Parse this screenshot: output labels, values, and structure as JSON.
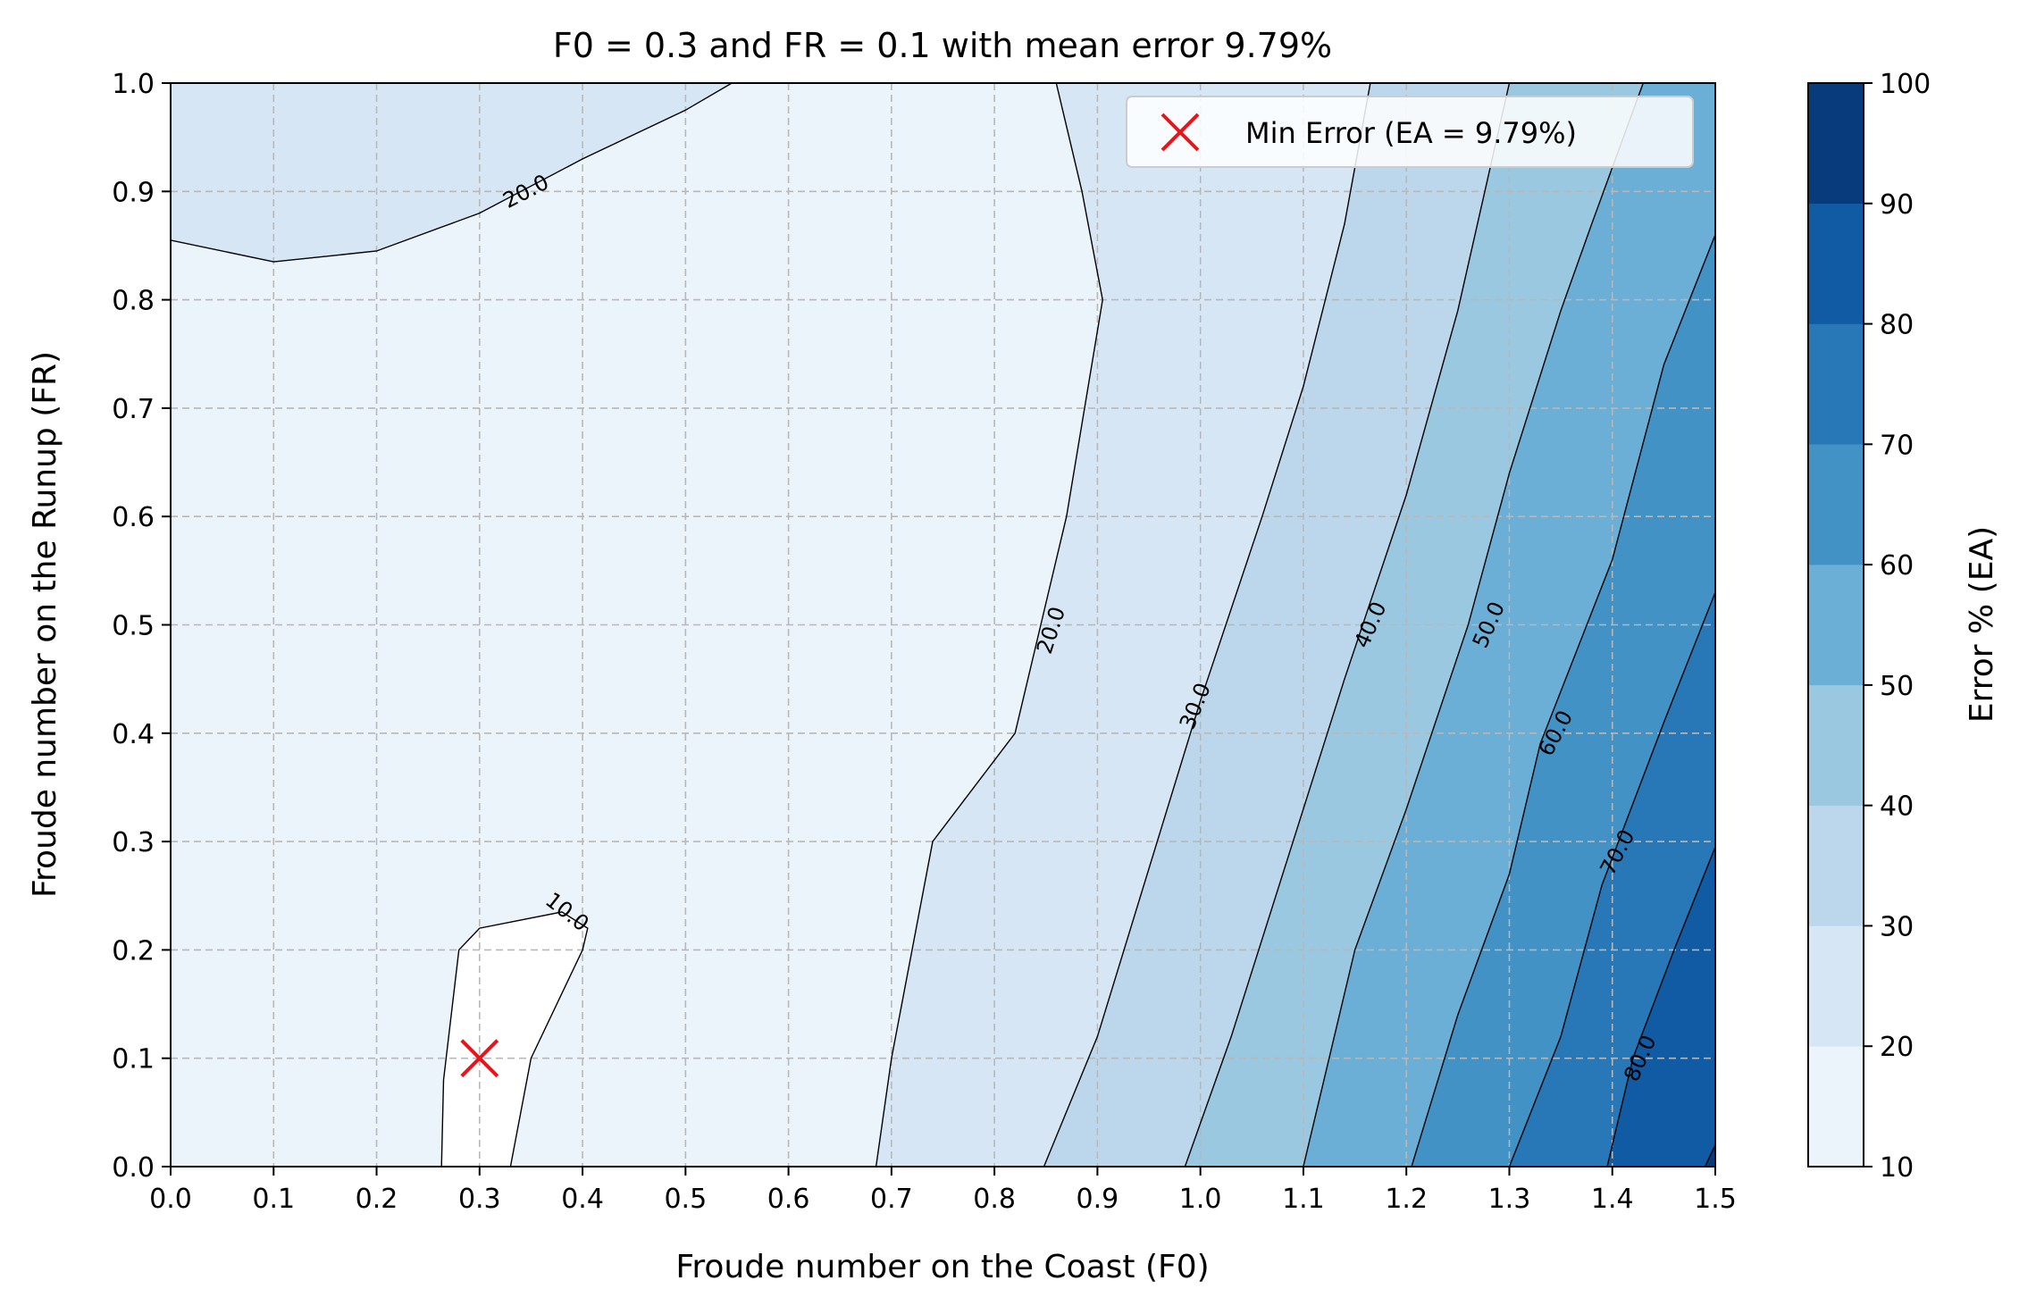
{
  "chart_data": {
    "type": "contour",
    "title": "F0 = 0.3 and FR = 0.1 with mean error 9.79%",
    "xlabel": "Froude number on the Coast (F0)",
    "ylabel": "Froude number on the Runup (FR)",
    "xlim": [
      0,
      1.5
    ],
    "ylim": [
      0,
      1.0
    ],
    "x_ticks": [
      "0.0",
      "0.1",
      "0.2",
      "0.3",
      "0.4",
      "0.5",
      "0.6",
      "0.7",
      "0.8",
      "0.9",
      "1.0",
      "1.1",
      "1.2",
      "1.3",
      "1.4",
      "1.5"
    ],
    "y_ticks": [
      "0.0",
      "0.1",
      "0.2",
      "0.3",
      "0.4",
      "0.5",
      "0.6",
      "0.7",
      "0.8",
      "0.9",
      "1.0"
    ],
    "grid": true,
    "colorbar": {
      "label": "Error % (EA)",
      "range": [
        10,
        100
      ],
      "levels": [
        10,
        20,
        30,
        40,
        50,
        60,
        70,
        80,
        90,
        100
      ],
      "tick_labels": [
        "10",
        "20",
        "30",
        "40",
        "50",
        "60",
        "70",
        "80",
        "90",
        "100"
      ],
      "colors": [
        "#ffffff",
        "#ebf3fb",
        "#d6e6f4",
        "#bcd7eb",
        "#9ac8e0",
        "#6baed6",
        "#4292c6",
        "#2878b8",
        "#105ba4",
        "#083b7c"
      ]
    },
    "contour_lines": [
      {
        "level": 10,
        "points": [
          [
            0.263,
            0
          ],
          [
            0.265,
            0.08
          ],
          [
            0.28,
            0.2
          ],
          [
            0.3,
            0.22
          ],
          [
            0.38,
            0.235
          ],
          [
            0.405,
            0.22
          ],
          [
            0.4,
            0.2
          ],
          [
            0.35,
            0.1
          ],
          [
            0.33,
            0
          ]
        ]
      },
      {
        "level": 20,
        "points": [
          [
            0.685,
            0
          ],
          [
            0.7,
            0.1
          ],
          [
            0.74,
            0.3
          ],
          [
            0.82,
            0.4
          ],
          [
            0.87,
            0.6
          ],
          [
            0.905,
            0.8
          ],
          [
            0.885,
            0.9
          ],
          [
            0.86,
            1.0
          ]
        ]
      },
      {
        "level": 20,
        "points": [
          [
            0,
            0.855
          ],
          [
            0.1,
            0.835
          ],
          [
            0.2,
            0.845
          ],
          [
            0.3,
            0.88
          ],
          [
            0.4,
            0.93
          ],
          [
            0.5,
            0.975
          ],
          [
            0.545,
            1.0
          ]
        ]
      },
      {
        "level": 30,
        "points": [
          [
            0.848,
            0
          ],
          [
            0.9,
            0.12
          ],
          [
            1.0,
            0.43
          ],
          [
            1.06,
            0.6
          ],
          [
            1.1,
            0.72
          ],
          [
            1.14,
            0.87
          ],
          [
            1.165,
            1.0
          ]
        ]
      },
      {
        "level": 40,
        "points": [
          [
            0.985,
            0
          ],
          [
            1.03,
            0.12
          ],
          [
            1.1,
            0.33
          ],
          [
            1.14,
            0.45
          ],
          [
            1.2,
            0.62
          ],
          [
            1.25,
            0.79
          ],
          [
            1.3,
            1.0
          ]
        ]
      },
      {
        "level": 50,
        "points": [
          [
            1.1,
            0
          ],
          [
            1.15,
            0.2
          ],
          [
            1.2,
            0.33
          ],
          [
            1.26,
            0.5
          ],
          [
            1.3,
            0.64
          ],
          [
            1.35,
            0.79
          ],
          [
            1.38,
            0.87
          ],
          [
            1.43,
            1.0
          ]
        ]
      },
      {
        "level": 60,
        "points": [
          [
            1.205,
            0
          ],
          [
            1.25,
            0.14
          ],
          [
            1.3,
            0.27
          ],
          [
            1.33,
            0.39
          ],
          [
            1.4,
            0.56
          ],
          [
            1.45,
            0.74
          ],
          [
            1.5,
            0.86
          ]
        ]
      },
      {
        "level": 70,
        "points": [
          [
            1.3,
            0
          ],
          [
            1.35,
            0.12
          ],
          [
            1.39,
            0.26
          ],
          [
            1.45,
            0.41
          ],
          [
            1.5,
            0.53
          ]
        ]
      },
      {
        "level": 80,
        "points": [
          [
            1.395,
            0
          ],
          [
            1.42,
            0.1
          ],
          [
            1.46,
            0.2
          ],
          [
            1.5,
            0.295
          ]
        ]
      },
      {
        "level": 90,
        "points": [
          [
            1.49,
            0
          ],
          [
            1.5,
            0.02
          ]
        ]
      }
    ],
    "contour_labels": [
      {
        "text": "10.0",
        "x": 0.385,
        "y": 0.235,
        "angle": 38
      },
      {
        "text": "20.0",
        "x": 0.855,
        "y": 0.495,
        "angle": -72
      },
      {
        "text": "20.0",
        "x": 0.345,
        "y": 0.9,
        "angle": -27
      },
      {
        "text": "30.0",
        "x": 0.995,
        "y": 0.425,
        "angle": -68
      },
      {
        "text": "40.0",
        "x": 1.165,
        "y": 0.5,
        "angle": -66
      },
      {
        "text": "50.0",
        "x": 1.28,
        "y": 0.5,
        "angle": -66
      },
      {
        "text": "60.0",
        "x": 1.345,
        "y": 0.4,
        "angle": -62
      },
      {
        "text": "70.0",
        "x": 1.405,
        "y": 0.29,
        "angle": -62
      },
      {
        "text": "80.0",
        "x": 1.427,
        "y": 0.1,
        "angle": -66
      }
    ],
    "marker": {
      "x": 0.3,
      "y": 0.1,
      "symbol": "x",
      "color": "#e8141c"
    },
    "legend": {
      "position": "top-right",
      "entries": [
        {
          "label": "Min Error (EA = 9.79%)",
          "symbol": "x",
          "color": "#e8141c"
        }
      ]
    }
  }
}
